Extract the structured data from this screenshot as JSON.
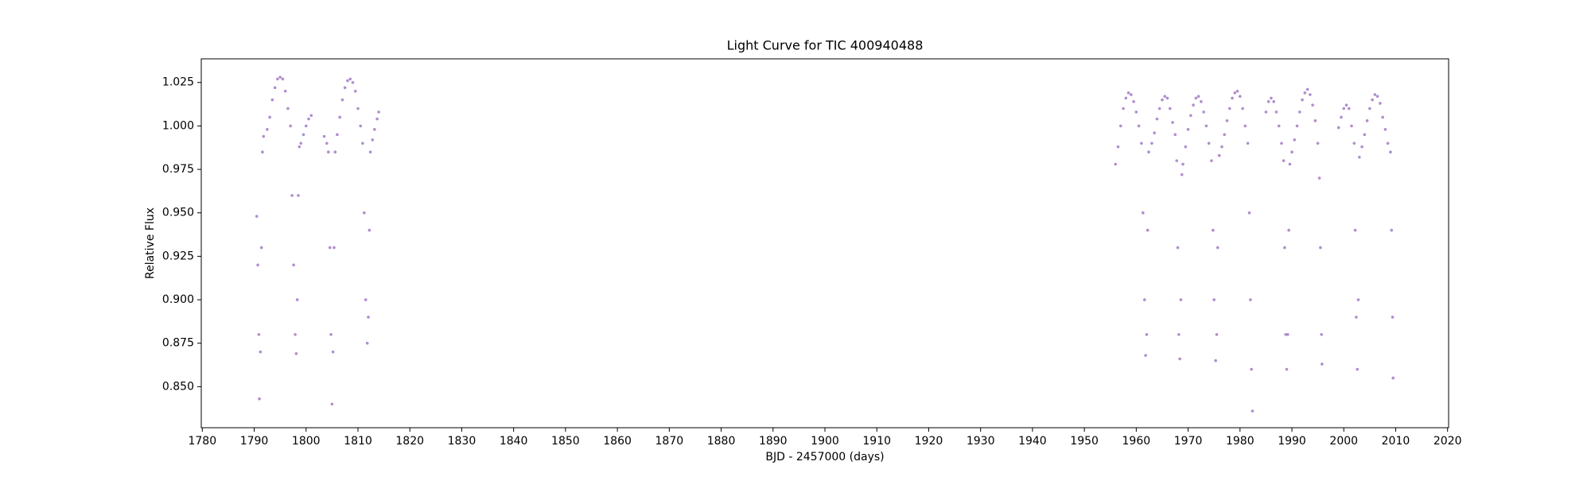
{
  "chart_data": {
    "type": "scatter",
    "title": "Light Curve for TIC 400940488",
    "x_label": "BJD - 2457000 (days)",
    "y_label": "Relative Flux",
    "xlim": [
      1779.8,
      2020.2
    ],
    "ylim": [
      0.8264,
      1.0386
    ],
    "xticks": [
      1780,
      1790,
      1800,
      1810,
      1820,
      1830,
      1840,
      1850,
      1860,
      1870,
      1880,
      1890,
      1900,
      1910,
      1920,
      1930,
      1940,
      1950,
      1960,
      1970,
      1980,
      1990,
      2000,
      2010,
      2020
    ],
    "yticks": [
      {
        "value": 0.85,
        "label": "0.850"
      },
      0.875,
      {
        "value": 0.9,
        "label": "0.900"
      },
      0.925,
      {
        "value": 0.95,
        "label": "0.950"
      },
      0.975,
      {
        "value": 1,
        "label": "1.000"
      },
      1.025
    ],
    "grid": false,
    "series": [
      {
        "color": "#9467bd",
        "x": [
          1790.5,
          1790.7,
          1790.9,
          1791.0,
          1791.2,
          1791.4,
          1791.6,
          1791.8,
          1792.5,
          1793.0,
          1793.5,
          1794.0,
          1794.5,
          1795.0,
          1795.5,
          1796.0,
          1796.5,
          1797.0,
          1797.3,
          1797.6,
          1797.9,
          1798.1,
          1798.3,
          1798.5,
          1798.7,
          1799.0,
          1799.5,
          1800.0,
          1800.5,
          1801.0,
          1803.5,
          1804.0,
          1804.3,
          1804.6,
          1804.8,
          1805.0,
          1805.2,
          1805.4,
          1805.6,
          1806.0,
          1806.5,
          1807.0,
          1807.5,
          1808.0,
          1808.5,
          1809.0,
          1809.5,
          1810.0,
          1810.5,
          1810.9,
          1811.2,
          1811.5,
          1811.8,
          1812.0,
          1812.2,
          1812.4,
          1812.8,
          1813.2,
          1813.7,
          1814.0,
          1956.0,
          1956.5,
          1957.0,
          1957.5,
          1958.0,
          1958.5,
          1959.0,
          1959.5,
          1960.0,
          1960.5,
          1961.0,
          1961.3,
          1961.6,
          1961.8,
          1962.0,
          1962.2,
          1962.4,
          1963.0,
          1963.5,
          1964.0,
          1964.5,
          1965.0,
          1965.5,
          1966.0,
          1966.5,
          1967.0,
          1967.5,
          1967.8,
          1968.0,
          1968.2,
          1968.4,
          1968.6,
          1968.8,
          1969.0,
          1969.5,
          1970.0,
          1970.5,
          1971.0,
          1971.5,
          1972.0,
          1972.5,
          1973.0,
          1973.5,
          1974.0,
          1974.5,
          1974.8,
          1975.0,
          1975.3,
          1975.5,
          1975.7,
          1976.0,
          1976.5,
          1977.0,
          1977.5,
          1978.0,
          1978.5,
          1979.0,
          1979.5,
          1980.0,
          1980.5,
          1981.0,
          1981.5,
          1981.8,
          1982.0,
          1982.2,
          1982.4,
          1985.0,
          1985.5,
          1986.0,
          1986.5,
          1987.0,
          1987.5,
          1988.0,
          1988.4,
          1988.6,
          1988.8,
          1989.0,
          1989.2,
          1989.4,
          1989.6,
          1990.0,
          1990.5,
          1991.0,
          1991.5,
          1992.0,
          1992.5,
          1993.0,
          1993.5,
          1994.0,
          1994.5,
          1995.0,
          1995.3,
          1995.5,
          1995.7,
          1995.8,
          1999.0,
          1999.5,
          2000.0,
          2000.5,
          2001.0,
          2001.5,
          2002.0,
          2002.2,
          2002.4,
          2002.6,
          2002.8,
          2003.0,
          2003.5,
          2004.0,
          2004.5,
          2005.0,
          2005.5,
          2006.0,
          2006.5,
          2007.0,
          2007.5,
          2008.0,
          2008.5,
          2009.0,
          2009.2,
          2009.4,
          2009.5
        ],
        "values": [
          0.948,
          0.92,
          0.88,
          0.843,
          0.87,
          0.93,
          0.985,
          0.994,
          0.998,
          1.005,
          1.015,
          1.022,
          1.027,
          1.028,
          1.027,
          1.02,
          1.01,
          1.0,
          0.96,
          0.92,
          0.88,
          0.869,
          0.9,
          0.96,
          0.988,
          0.99,
          0.995,
          1.0,
          1.004,
          1.006,
          0.994,
          0.99,
          0.985,
          0.93,
          0.88,
          0.84,
          0.87,
          0.93,
          0.985,
          0.995,
          1.005,
          1.015,
          1.022,
          1.026,
          1.027,
          1.025,
          1.02,
          1.01,
          1.0,
          0.99,
          0.95,
          0.9,
          0.875,
          0.89,
          0.94,
          0.985,
          0.992,
          0.998,
          1.004,
          1.008,
          0.978,
          0.988,
          1.0,
          1.01,
          1.016,
          1.019,
          1.018,
          1.014,
          1.008,
          1.0,
          0.99,
          0.95,
          0.9,
          0.868,
          0.88,
          0.94,
          0.985,
          0.99,
          0.996,
          1.004,
          1.01,
          1.015,
          1.017,
          1.016,
          1.01,
          1.002,
          0.995,
          0.98,
          0.93,
          0.88,
          0.866,
          0.9,
          0.972,
          0.978,
          0.988,
          0.998,
          1.006,
          1.012,
          1.016,
          1.017,
          1.014,
          1.008,
          1.0,
          0.99,
          0.98,
          0.94,
          0.9,
          0.865,
          0.88,
          0.93,
          0.983,
          0.988,
          0.995,
          1.003,
          1.01,
          1.016,
          1.019,
          1.02,
          1.017,
          1.01,
          1.0,
          0.99,
          0.95,
          0.9,
          0.86,
          0.836,
          1.008,
          1.014,
          1.016,
          1.014,
          1.008,
          1.0,
          0.99,
          0.98,
          0.93,
          0.88,
          0.86,
          0.88,
          0.94,
          0.978,
          0.985,
          0.992,
          1.0,
          1.008,
          1.015,
          1.019,
          1.021,
          1.018,
          1.012,
          1.003,
          0.99,
          0.97,
          0.93,
          0.88,
          0.863,
          0.999,
          1.005,
          1.01,
          1.012,
          1.01,
          1.0,
          0.99,
          0.94,
          0.89,
          0.86,
          0.9,
          0.982,
          0.988,
          0.995,
          1.003,
          1.01,
          1.015,
          1.018,
          1.017,
          1.013,
          1.005,
          0.998,
          0.99,
          0.985,
          0.94,
          0.89,
          0.855
        ]
      }
    ]
  }
}
